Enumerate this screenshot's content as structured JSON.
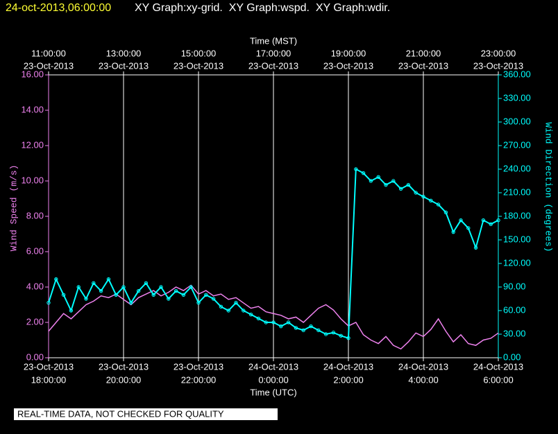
{
  "chart_data": {
    "type": "scatter",
    "title": "24-oct-2013,06:00:00",
    "subtitle": "XY Graph:xy-grid.  XY Graph:wspd.  XY Graph:wdir.",
    "x_label": "Time (UTC)",
    "x2_label": "Time (MST)",
    "y_label": "Wind Speed (m/s)",
    "y2_label": "Wind Direction (degrees)",
    "footer": "REAL-TIME DATA, NOT CHECKED FOR QUALITY",
    "xlim": [
      0,
      12
    ],
    "xticks": [
      {
        "value": 0,
        "label": [
          "23-Oct-2013",
          "18:00:00"
        ]
      },
      {
        "value": 2,
        "label": [
          "23-Oct-2013",
          "20:00:00"
        ]
      },
      {
        "value": 4,
        "label": [
          "23-Oct-2013",
          "22:00:00"
        ]
      },
      {
        "value": 6,
        "label": [
          "24-Oct-2013",
          "0:00:00"
        ]
      },
      {
        "value": 8,
        "label": [
          "24-Oct-2013",
          "2:00:00"
        ]
      },
      {
        "value": 10,
        "label": [
          "24-Oct-2013",
          "4:00:00"
        ]
      },
      {
        "value": 12,
        "label": [
          "24-Oct-2013",
          "6:00:00"
        ]
      }
    ],
    "x2ticks": [
      {
        "value": 0,
        "label": [
          "11:00:00",
          "23-Oct-2013"
        ]
      },
      {
        "value": 2,
        "label": [
          "13:00:00",
          "23-Oct-2013"
        ]
      },
      {
        "value": 4,
        "label": [
          "15:00:00",
          "23-Oct-2013"
        ]
      },
      {
        "value": 6,
        "label": [
          "17:00:00",
          "23-Oct-2013"
        ]
      },
      {
        "value": 8,
        "label": [
          "19:00:00",
          "23-Oct-2013"
        ]
      },
      {
        "value": 10,
        "label": [
          "21:00:00",
          "23-Oct-2013"
        ]
      },
      {
        "value": 12,
        "label": [
          "23:00:00",
          "23-Oct-2013"
        ]
      }
    ],
    "ylim": [
      0,
      16
    ],
    "yticks": [
      {
        "value": 0,
        "label": "0.00"
      },
      {
        "value": 2,
        "label": "2.00"
      },
      {
        "value": 4,
        "label": "4.00"
      },
      {
        "value": 6,
        "label": "6.00"
      },
      {
        "value": 8,
        "label": "8.00"
      },
      {
        "value": 10,
        "label": "10.00"
      },
      {
        "value": 12,
        "label": "12.00"
      },
      {
        "value": 14,
        "label": "14.00"
      },
      {
        "value": 16,
        "label": "16.00"
      }
    ],
    "y2lim": [
      0,
      360
    ],
    "y2ticks": [
      {
        "value": 0,
        "label": "0.00"
      },
      {
        "value": 30,
        "label": "30.00"
      },
      {
        "value": 60,
        "label": "60.00"
      },
      {
        "value": 90,
        "label": "90.00"
      },
      {
        "value": 120,
        "label": "120.00"
      },
      {
        "value": 150,
        "label": "150.00"
      },
      {
        "value": 180,
        "label": "180.00"
      },
      {
        "value": 210,
        "label": "210.00"
      },
      {
        "value": 240,
        "label": "240.00"
      },
      {
        "value": 270,
        "label": "270.00"
      },
      {
        "value": 300,
        "label": "300.00"
      },
      {
        "value": 330,
        "label": "330.00"
      },
      {
        "value": 360,
        "label": "360.00"
      }
    ],
    "grid": true,
    "x": [
      0,
      0.2,
      0.4,
      0.6,
      0.8,
      1,
      1.2,
      1.4,
      1.6,
      1.8,
      2,
      2.2,
      2.4,
      2.6,
      2.8,
      3,
      3.2,
      3.4,
      3.6,
      3.8,
      4,
      4.2,
      4.4,
      4.6,
      4.8,
      5,
      5.2,
      5.4,
      5.6,
      5.8,
      6,
      6.2,
      6.4,
      6.6,
      6.8,
      7,
      7.2,
      7.4,
      7.6,
      7.8,
      8,
      8.2,
      8.4,
      8.6,
      8.8,
      9,
      9.2,
      9.4,
      9.6,
      9.8,
      10,
      10.2,
      10.4,
      10.6,
      10.8,
      11,
      11.2,
      11.4,
      11.6,
      11.8,
      12
    ],
    "series": [
      {
        "color": "#ee82ee",
        "axis": "y",
        "values": [
          1.5,
          2.0,
          2.5,
          2.2,
          2.6,
          3.0,
          3.2,
          3.5,
          3.4,
          3.6,
          3.3,
          3.0,
          3.4,
          3.6,
          3.8,
          3.5,
          3.7,
          4.0,
          3.8,
          4.1,
          3.6,
          3.8,
          3.5,
          3.6,
          3.3,
          3.4,
          3.1,
          2.8,
          2.9,
          2.6,
          2.5,
          2.4,
          2.2,
          2.3,
          2.0,
          2.4,
          2.8,
          3.0,
          2.7,
          2.2,
          1.8,
          2.0,
          1.3,
          1.0,
          0.8,
          1.2,
          0.7,
          0.5,
          0.9,
          1.4,
          1.2,
          1.6,
          2.2,
          1.5,
          0.9,
          1.3,
          0.8,
          0.7,
          1.0,
          1.1,
          1.4
        ]
      },
      {
        "color": "#00ffff",
        "axis": "y2",
        "values": [
          70,
          100,
          80,
          60,
          90,
          75,
          95,
          85,
          100,
          80,
          90,
          70,
          85,
          95,
          80,
          90,
          75,
          85,
          80,
          90,
          70,
          80,
          75,
          65,
          60,
          70,
          60,
          55,
          50,
          45,
          45,
          40,
          45,
          38,
          35,
          40,
          35,
          30,
          32,
          28,
          25,
          240,
          235,
          225,
          230,
          220,
          225,
          215,
          220,
          210,
          205,
          200,
          195,
          185,
          160,
          175,
          165,
          140,
          175,
          170,
          175
        ]
      }
    ]
  }
}
